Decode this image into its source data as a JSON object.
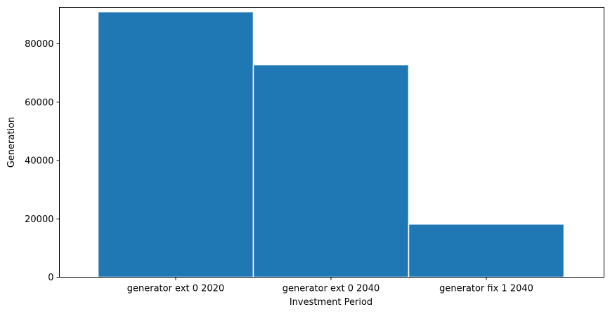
{
  "chart_data": {
    "type": "bar",
    "title": "",
    "xlabel": "Investment Period",
    "ylabel": "Generation",
    "categories": [
      "generator ext 0 2020",
      "generator ext 0 2040",
      "generator fix 1 2040"
    ],
    "values": [
      91000,
      72800,
      18200
    ],
    "ylim": [
      0,
      92500
    ],
    "yticks": [
      0,
      20000,
      40000,
      60000,
      80000
    ],
    "ytick_labels": [
      "0",
      "20000",
      "40000",
      "60000",
      "80000"
    ],
    "grid": false,
    "legend": "none",
    "colors": {
      "bar": "#1f77b4",
      "bar_edge": "#ffffff"
    }
  }
}
